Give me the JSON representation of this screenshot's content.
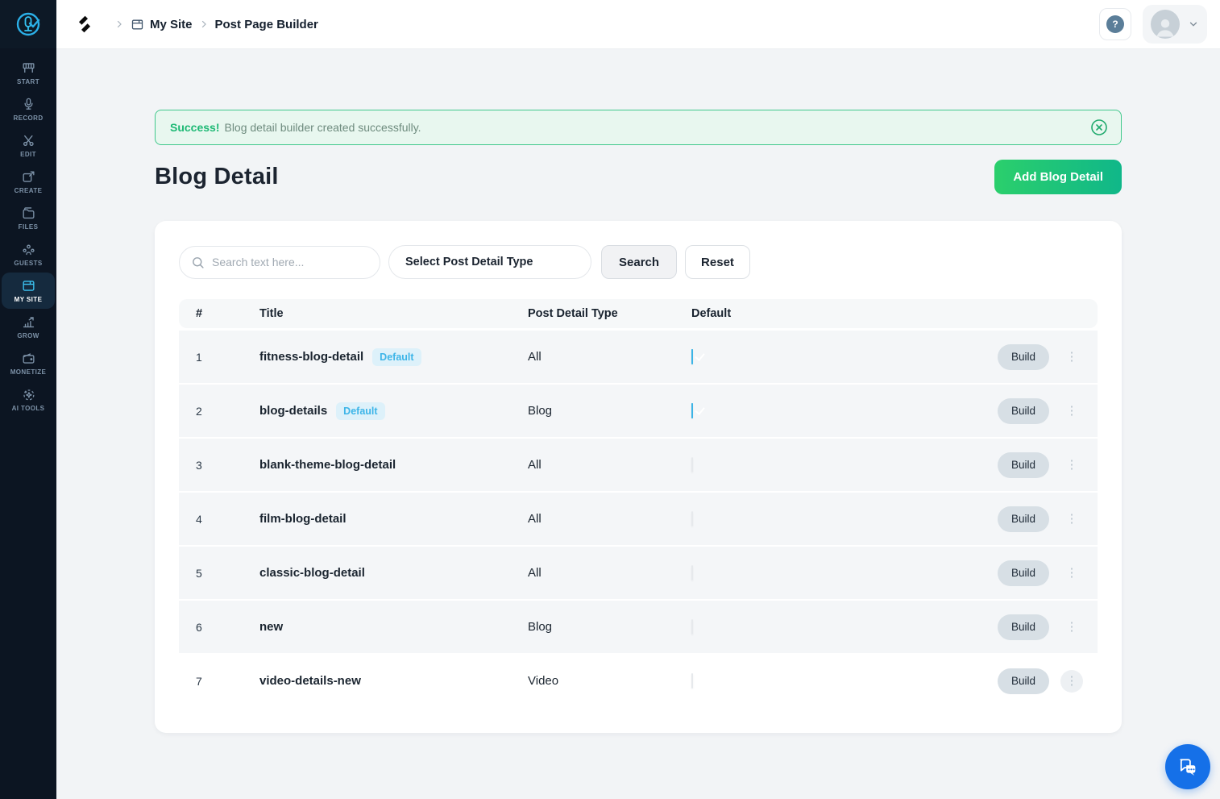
{
  "topbar": {
    "breadcrumb": {
      "site": "My Site",
      "page": "Post Page Builder"
    },
    "help_glyph": "?"
  },
  "sidebar": {
    "items": [
      {
        "label": "START",
        "icon": "start-icon",
        "active": false
      },
      {
        "label": "RECORD",
        "icon": "record-icon",
        "active": false
      },
      {
        "label": "EDIT",
        "icon": "edit-icon",
        "active": false
      },
      {
        "label": "CREATE",
        "icon": "create-icon",
        "active": false
      },
      {
        "label": "FILES",
        "icon": "files-icon",
        "active": false
      },
      {
        "label": "GUESTS",
        "icon": "guests-icon",
        "active": false
      },
      {
        "label": "MY SITE",
        "icon": "my-site-icon",
        "active": true
      },
      {
        "label": "GROW",
        "icon": "grow-icon",
        "active": false
      },
      {
        "label": "MONETIZE",
        "icon": "monetize-icon",
        "active": false
      },
      {
        "label": "AI TOOLS",
        "icon": "ai-tools-icon",
        "active": false
      }
    ]
  },
  "alert": {
    "prefix": "Success!",
    "message": "Blog detail builder created successfully."
  },
  "page": {
    "title": "Blog Detail",
    "add_button_label": "Add Blog Detail"
  },
  "filters": {
    "search_placeholder": "Search text here...",
    "type_select_value": "Select Post Detail Type",
    "search_button_label": "Search",
    "reset_button_label": "Reset"
  },
  "table": {
    "columns": [
      "#",
      "Title",
      "Post Detail Type",
      "Default"
    ],
    "build_button_label": "Build",
    "rows": [
      {
        "num": "1",
        "title": "fitness-blog-detail",
        "badge": "Default",
        "type": "All",
        "default": true
      },
      {
        "num": "2",
        "title": "blog-details",
        "badge": "Default",
        "type": "Blog",
        "default": true
      },
      {
        "num": "3",
        "title": "blank-theme-blog-detail",
        "badge": null,
        "type": "All",
        "default": false
      },
      {
        "num": "4",
        "title": "film-blog-detail",
        "badge": null,
        "type": "All",
        "default": false
      },
      {
        "num": "5",
        "title": "classic-blog-detail",
        "badge": null,
        "type": "All",
        "default": false
      },
      {
        "num": "6",
        "title": "new",
        "badge": null,
        "type": "Blog",
        "default": false
      },
      {
        "num": "7",
        "title": "video-details-new",
        "badge": null,
        "type": "Video",
        "default": false
      }
    ]
  },
  "colors": {
    "success_green": "#1db974",
    "add_button_gradient_start": "#2bcf6c",
    "add_button_gradient_end": "#10b789",
    "badge_blue": "#3db5e8",
    "checkbox_blue": "#3cb4e6",
    "sidebar_bg": "#0c1522",
    "sidebar_active_icon": "#3cc3f2",
    "chat_fab_blue": "#1570e8"
  }
}
